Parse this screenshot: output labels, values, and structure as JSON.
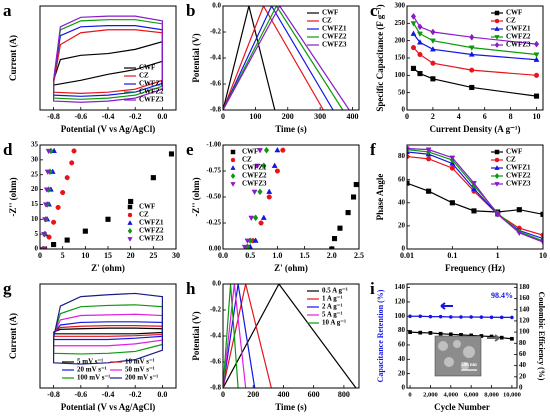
{
  "chart_data": [
    {
      "type": "line",
      "panel": "a",
      "xlabel": "Potential (V vs Ag/AgCl)",
      "ylabel": "Current (A)",
      "xlim": [
        -0.9,
        0.1
      ],
      "xticks": [
        -0.8,
        -0.6,
        -0.4,
        -0.2,
        {
          "value": 0,
          "label": "0.0"
        }
      ],
      "ylim": [
        -0.8,
        0.95
      ],
      "yticks": [],
      "legend": "lower right",
      "x": [
        -0.8,
        -0.75,
        -0.6,
        -0.4,
        -0.2,
        0,
        0,
        -0.2,
        -0.4,
        -0.6,
        -0.8,
        -0.8
      ],
      "series": [
        {
          "name": "CWF",
          "color": "#000000",
          "values": [
            -0.3,
            0.05,
            0.12,
            0.15,
            0.22,
            0.35,
            0.02,
            -0.12,
            -0.2,
            -0.3,
            -0.38,
            -0.3
          ]
        },
        {
          "name": "CZ",
          "color": "#e8141b",
          "values": [
            -0.35,
            0.3,
            0.5,
            0.55,
            0.55,
            0.5,
            -0.3,
            -0.45,
            -0.5,
            -0.52,
            -0.5,
            -0.35
          ]
        },
        {
          "name": "CWFZ1",
          "color": "#1515e6",
          "values": [
            -0.3,
            0.45,
            0.6,
            0.62,
            0.62,
            0.55,
            -0.35,
            -0.5,
            -0.55,
            -0.57,
            -0.55,
            -0.3
          ]
        },
        {
          "name": "CWFZ2",
          "color": "#0a9a0a",
          "values": [
            -0.3,
            0.55,
            0.7,
            0.72,
            0.72,
            0.65,
            -0.4,
            -0.55,
            -0.6,
            -0.62,
            -0.6,
            -0.3
          ]
        },
        {
          "name": "CWFZ3",
          "color": "#8a1cc8",
          "values": [
            -0.3,
            0.6,
            0.76,
            0.78,
            0.78,
            0.7,
            -0.45,
            -0.6,
            -0.65,
            -0.67,
            -0.65,
            -0.3
          ]
        }
      ]
    },
    {
      "type": "line",
      "panel": "b",
      "xlabel": "Time (s)",
      "ylabel": "Potential (V)",
      "xlim": [
        0,
        420
      ],
      "xticks": [
        0,
        100,
        200,
        300,
        400
      ],
      "ylim": [
        -0.8,
        0
      ],
      "yticks": [
        -0.8,
        -0.6,
        -0.4,
        -0.2,
        {
          "value": 0,
          "label": "0.0"
        }
      ],
      "legend": "upper right",
      "series": [
        {
          "name": "CWF",
          "color": "#000000",
          "x": [
            0,
            80,
            160
          ],
          "values": [
            -0.8,
            0,
            -0.8
          ]
        },
        {
          "name": "CZ",
          "color": "#e8141b",
          "x": [
            0,
            125,
            310
          ],
          "values": [
            -0.8,
            0,
            -0.8
          ]
        },
        {
          "name": "CWFZ1",
          "color": "#1515e6",
          "x": [
            0,
            150,
            340
          ],
          "values": [
            -0.8,
            0,
            -0.8
          ]
        },
        {
          "name": "CWFZ2",
          "color": "#0a9a0a",
          "x": [
            0,
            165,
            370
          ],
          "values": [
            -0.8,
            0,
            -0.8
          ]
        },
        {
          "name": "CWFZ3",
          "color": "#8a1cc8",
          "x": [
            0,
            175,
            390
          ],
          "values": [
            -0.8,
            0,
            -0.8
          ]
        }
      ]
    },
    {
      "type": "line",
      "panel": "c",
      "xlabel": "Current Density (A g⁻¹)",
      "ylabel": "Specific Capacitance (F g⁻¹)",
      "xlim": [
        0,
        10.5
      ],
      "xticks": [
        0,
        2,
        4,
        6,
        8,
        10
      ],
      "ylim": [
        0,
        300
      ],
      "yticks": [
        0,
        50,
        100,
        150,
        200,
        250,
        300
      ],
      "legend": "upper right",
      "x": [
        0.5,
        1,
        2,
        5,
        10
      ],
      "series": [
        {
          "name": "CWF",
          "color": "#000000",
          "marker": "square",
          "values": [
            120,
            105,
            90,
            65,
            40
          ]
        },
        {
          "name": "CZ",
          "color": "#e8141b",
          "marker": "circle",
          "values": [
            180,
            160,
            135,
            115,
            100
          ]
        },
        {
          "name": "CWFZ1",
          "color": "#1515e6",
          "marker": "triangle-up",
          "values": [
            220,
            195,
            175,
            160,
            145
          ]
        },
        {
          "name": "CWFZ2",
          "color": "#0a9a0a",
          "marker": "triangle-down",
          "values": [
            250,
            220,
            200,
            180,
            160
          ]
        },
        {
          "name": "CWFZ3",
          "color": "#8a1cc8",
          "marker": "diamond",
          "values": [
            270,
            240,
            225,
            210,
            190
          ]
        }
      ]
    },
    {
      "type": "scatter",
      "panel": "d",
      "xlabel": "Z' (ohm)",
      "ylabel": "-Z'' (ohm)",
      "xlim": [
        0,
        30
      ],
      "xticks": [
        0,
        5,
        10,
        15,
        20,
        25,
        30
      ],
      "ylim": [
        0,
        35
      ],
      "yticks": [
        0,
        5,
        10,
        15,
        20,
        25,
        30,
        35
      ],
      "legend": "lower right",
      "series": [
        {
          "name": "CWF",
          "color": "#000000",
          "marker": "square",
          "x": [
            1,
            3,
            6,
            10,
            15,
            20,
            25,
            29
          ],
          "values": [
            0,
            1.5,
            3,
            6,
            10,
            16,
            24,
            32
          ]
        },
        {
          "name": "CZ",
          "color": "#e8141b",
          "marker": "circle",
          "x": [
            1,
            2,
            3,
            4,
            5,
            6,
            7,
            7.5
          ],
          "values": [
            0,
            4,
            9,
            14,
            19,
            24,
            29,
            33
          ]
        },
        {
          "name": "CWFZ1",
          "color": "#1515e6",
          "marker": "triangle-up",
          "x": [
            0.8,
            1.2,
            1.6,
            2,
            2.4,
            2.8,
            3.1
          ],
          "values": [
            0,
            5,
            10,
            15,
            20,
            26,
            33
          ]
        },
        {
          "name": "CWFZ2",
          "color": "#0a9a0a",
          "marker": "diamond",
          "x": [
            0.7,
            1,
            1.3,
            1.6,
            1.9,
            2.2,
            2.4
          ],
          "values": [
            0,
            5,
            10,
            15,
            20,
            26,
            33
          ]
        },
        {
          "name": "CWFZ3",
          "color": "#8a1cc8",
          "marker": "triangle-down",
          "x": [
            0.6,
            0.9,
            1.1,
            1.3,
            1.5,
            1.7,
            1.9
          ],
          "values": [
            0,
            5,
            10,
            15,
            20,
            26,
            33
          ]
        }
      ]
    },
    {
      "type": "scatter",
      "panel": "e",
      "xlabel": "Z' (ohm)",
      "ylabel": "-Z'' (ohm)",
      "xlim": [
        0,
        2.5
      ],
      "xticks": [
        {
          "value": 0,
          "label": "0.0"
        },
        0.5,
        {
          "value": 1,
          "label": "1.0"
        },
        1.5,
        {
          "value": 2,
          "label": "2.0"
        },
        2.5
      ],
      "ylim": [
        0,
        -1
      ],
      "yticks": [
        {
          "value": -1,
          "label": "-1.00"
        },
        -0.75,
        {
          "value": -0.5,
          "label": "-0.50"
        },
        -0.25,
        {
          "value": 0,
          "label": "0.00"
        }
      ],
      "legend": "upper left",
      "series": [
        {
          "name": "CWF",
          "color": "#000000",
          "marker": "square",
          "x": [
            2.0,
            2.05,
            2.15,
            2.3,
            2.4,
            2.45
          ],
          "values": [
            0,
            -0.1,
            -0.2,
            -0.35,
            -0.5,
            -0.62
          ]
        },
        {
          "name": "CZ",
          "color": "#e8141b",
          "marker": "circle",
          "x": [
            0.45,
            0.55,
            0.7,
            0.85,
            1.0,
            1.1
          ],
          "values": [
            -0.02,
            -0.08,
            -0.25,
            -0.5,
            -0.75,
            -0.95
          ]
        },
        {
          "name": "CWFZ1",
          "color": "#1515e6",
          "marker": "triangle-up",
          "x": [
            0.5,
            0.6,
            0.75,
            0.85,
            0.95,
            1.0
          ],
          "values": [
            -0.02,
            -0.08,
            -0.3,
            -0.55,
            -0.8,
            -0.95
          ]
        },
        {
          "name": "CWFZ2",
          "color": "#0a9a0a",
          "marker": "diamond",
          "x": [
            0.45,
            0.5,
            0.6,
            0.68,
            0.75,
            0.8
          ],
          "values": [
            -0.02,
            -0.08,
            -0.3,
            -0.55,
            -0.8,
            -0.95
          ]
        },
        {
          "name": "CWFZ3",
          "color": "#8a1cc8",
          "marker": "triangle-down",
          "x": [
            0.4,
            0.45,
            0.52,
            0.58,
            0.63,
            0.68
          ],
          "values": [
            -0.02,
            -0.08,
            -0.3,
            -0.55,
            -0.8,
            -0.95
          ]
        }
      ]
    },
    {
      "type": "line",
      "panel": "f",
      "xlabel": "Frequency (Hz)",
      "ylabel": "Phase Angle",
      "xscale": "log",
      "xlim": [
        0.01,
        10
      ],
      "xticks": [
        0.01,
        0.1,
        1,
        10
      ],
      "ylim": [
        0,
        90
      ],
      "yticks": [
        0,
        20,
        40,
        60,
        80
      ],
      "legend": "upper right",
      "x": [
        0.01,
        0.03,
        0.1,
        0.3,
        1,
        3,
        10
      ],
      "series": [
        {
          "name": "CWF",
          "color": "#000000",
          "marker": "square",
          "values": [
            57,
            50,
            40,
            33,
            32,
            34,
            30
          ]
        },
        {
          "name": "CZ",
          "color": "#e8141b",
          "marker": "circle",
          "values": [
            80,
            78,
            70,
            50,
            30,
            18,
            12
          ]
        },
        {
          "name": "CWFZ1",
          "color": "#1515e6",
          "marker": "triangle-up",
          "values": [
            84,
            82,
            74,
            52,
            30,
            16,
            9
          ]
        },
        {
          "name": "CWFZ2",
          "color": "#0a9a0a",
          "marker": "diamond",
          "values": [
            86,
            84,
            77,
            55,
            31,
            15,
            7
          ]
        },
        {
          "name": "CWFZ3",
          "color": "#8a1cc8",
          "marker": "triangle-down",
          "values": [
            87,
            86,
            79,
            57,
            30,
            14,
            6
          ]
        }
      ]
    },
    {
      "type": "line",
      "panel": "g",
      "xlabel": "Potential (V vs Ag/AgCl)",
      "ylabel": "Current (A)",
      "xlim": [
        -0.9,
        0.1
      ],
      "xticks": [
        -0.8,
        -0.6,
        -0.4,
        -0.2,
        {
          "value": 0,
          "label": "0.0"
        }
      ],
      "ylim": [
        -0.9,
        0.75
      ],
      "yticks": [],
      "legend": "lower center",
      "legend_columns": 2,
      "x": [
        -0.8,
        -0.75,
        -0.6,
        -0.4,
        -0.2,
        0,
        0,
        -0.2,
        -0.4,
        -0.6,
        -0.8,
        -0.8
      ],
      "series": [
        {
          "name": "5 mV s⁻¹",
          "color": "#000000",
          "values": [
            -0.01,
            0.03,
            0.04,
            0.05,
            0.05,
            0.04,
            -0.02,
            -0.04,
            -0.04,
            -0.04,
            -0.04,
            -0.01
          ]
        },
        {
          "name": "10 mV s⁻¹",
          "color": "#e8141b",
          "values": [
            -0.02,
            0.06,
            0.08,
            0.09,
            0.09,
            0.08,
            -0.05,
            -0.07,
            -0.08,
            -0.08,
            -0.08,
            -0.02
          ]
        },
        {
          "name": "20 mV s⁻¹",
          "color": "#1515e6",
          "values": [
            -0.03,
            0.1,
            0.14,
            0.15,
            0.15,
            0.14,
            -0.08,
            -0.11,
            -0.13,
            -0.13,
            -0.13,
            -0.03
          ]
        },
        {
          "name": "50 mV s⁻¹",
          "color": "#e020e0",
          "values": [
            -0.05,
            0.18,
            0.25,
            0.26,
            0.27,
            0.25,
            -0.14,
            -0.2,
            -0.23,
            -0.23,
            -0.23,
            -0.05
          ]
        },
        {
          "name": "100 mV s⁻¹",
          "color": "#0a9a0a",
          "values": [
            -0.07,
            0.28,
            0.39,
            0.41,
            0.42,
            0.39,
            -0.21,
            -0.32,
            -0.35,
            -0.36,
            -0.35,
            -0.07
          ]
        },
        {
          "name": "200 mV s⁻¹",
          "color": "#1a1a8a",
          "values": [
            -0.1,
            0.4,
            0.55,
            0.58,
            0.6,
            0.55,
            -0.3,
            -0.45,
            -0.5,
            -0.52,
            -0.5,
            -0.1
          ]
        }
      ]
    },
    {
      "type": "line",
      "panel": "h",
      "xlabel": "Time (s)",
      "ylabel": "Potential (V)",
      "xlim": [
        0,
        900
      ],
      "xticks": [
        0,
        200,
        400,
        600,
        800
      ],
      "ylim": [
        -0.8,
        0
      ],
      "yticks": [
        -0.8,
        -0.6,
        -0.4,
        -0.2,
        {
          "value": 0,
          "label": "0.0"
        }
      ],
      "legend": "upper right",
      "series": [
        {
          "name": "0.5 A g⁻¹",
          "color": "#000000",
          "x": [
            0,
            370,
            880
          ],
          "values": [
            -0.8,
            0,
            -0.8
          ]
        },
        {
          "name": "1 A g⁻¹",
          "color": "#e8141b",
          "x": [
            0,
            150,
            320
          ],
          "values": [
            -0.8,
            0,
            -0.8
          ]
        },
        {
          "name": "2 A g⁻¹",
          "color": "#1515e6",
          "x": [
            0,
            100,
            210
          ],
          "values": [
            -0.8,
            0,
            -0.8
          ]
        },
        {
          "name": "5 A g⁻¹",
          "color": "#e020e0",
          "x": [
            0,
            75,
            150
          ],
          "values": [
            -0.8,
            0,
            -0.8
          ]
        },
        {
          "name": "10 A g⁻¹",
          "color": "#0a9a0a",
          "x": [
            0,
            50,
            100
          ],
          "values": [
            -0.8,
            0,
            -0.8
          ]
        }
      ]
    },
    {
      "type": "line",
      "panel": "i",
      "xlabel": "Cycle Number",
      "ylabel": "Capacitance Retention (%)",
      "ylabel_color": "#1515e6",
      "y2label": "Coulombic Efficiency (%)",
      "annotation": "98.4%",
      "inset_label": "500 nm",
      "xlim": [
        -300,
        10500
      ],
      "xticks": [
        0,
        {
          "value": 2000,
          "label": "2,000"
        },
        {
          "value": 4000,
          "label": "4,000"
        },
        {
          "value": 6000,
          "label": "6,000"
        },
        {
          "value": 8000,
          "label": "8,000"
        },
        {
          "value": 10000,
          "label": "10,000"
        }
      ],
      "ylim": [
        0,
        145
      ],
      "yticks": [
        0,
        20,
        40,
        60,
        80,
        100,
        120,
        140
      ],
      "y2lim": [
        0,
        186
      ],
      "y2ticks": [
        0,
        20,
        40,
        60,
        80,
        100,
        120,
        140,
        160,
        180
      ],
      "x": [
        0,
        1000,
        2000,
        3000,
        4000,
        5000,
        6000,
        7000,
        8000,
        9000,
        10000
      ],
      "series": [
        {
          "color": "#1515e6",
          "marker": "circle",
          "values": [
            100,
            100,
            99.5,
            99.5,
            99,
            99,
            99,
            98.8,
            98.6,
            98.5,
            98.4
          ]
        },
        {
          "color": "#000000",
          "marker": "square",
          "axis": "y2",
          "values": [
            100,
            99,
            98.5,
            97,
            96,
            95,
            94,
            93,
            92,
            90,
            88
          ]
        }
      ]
    }
  ]
}
